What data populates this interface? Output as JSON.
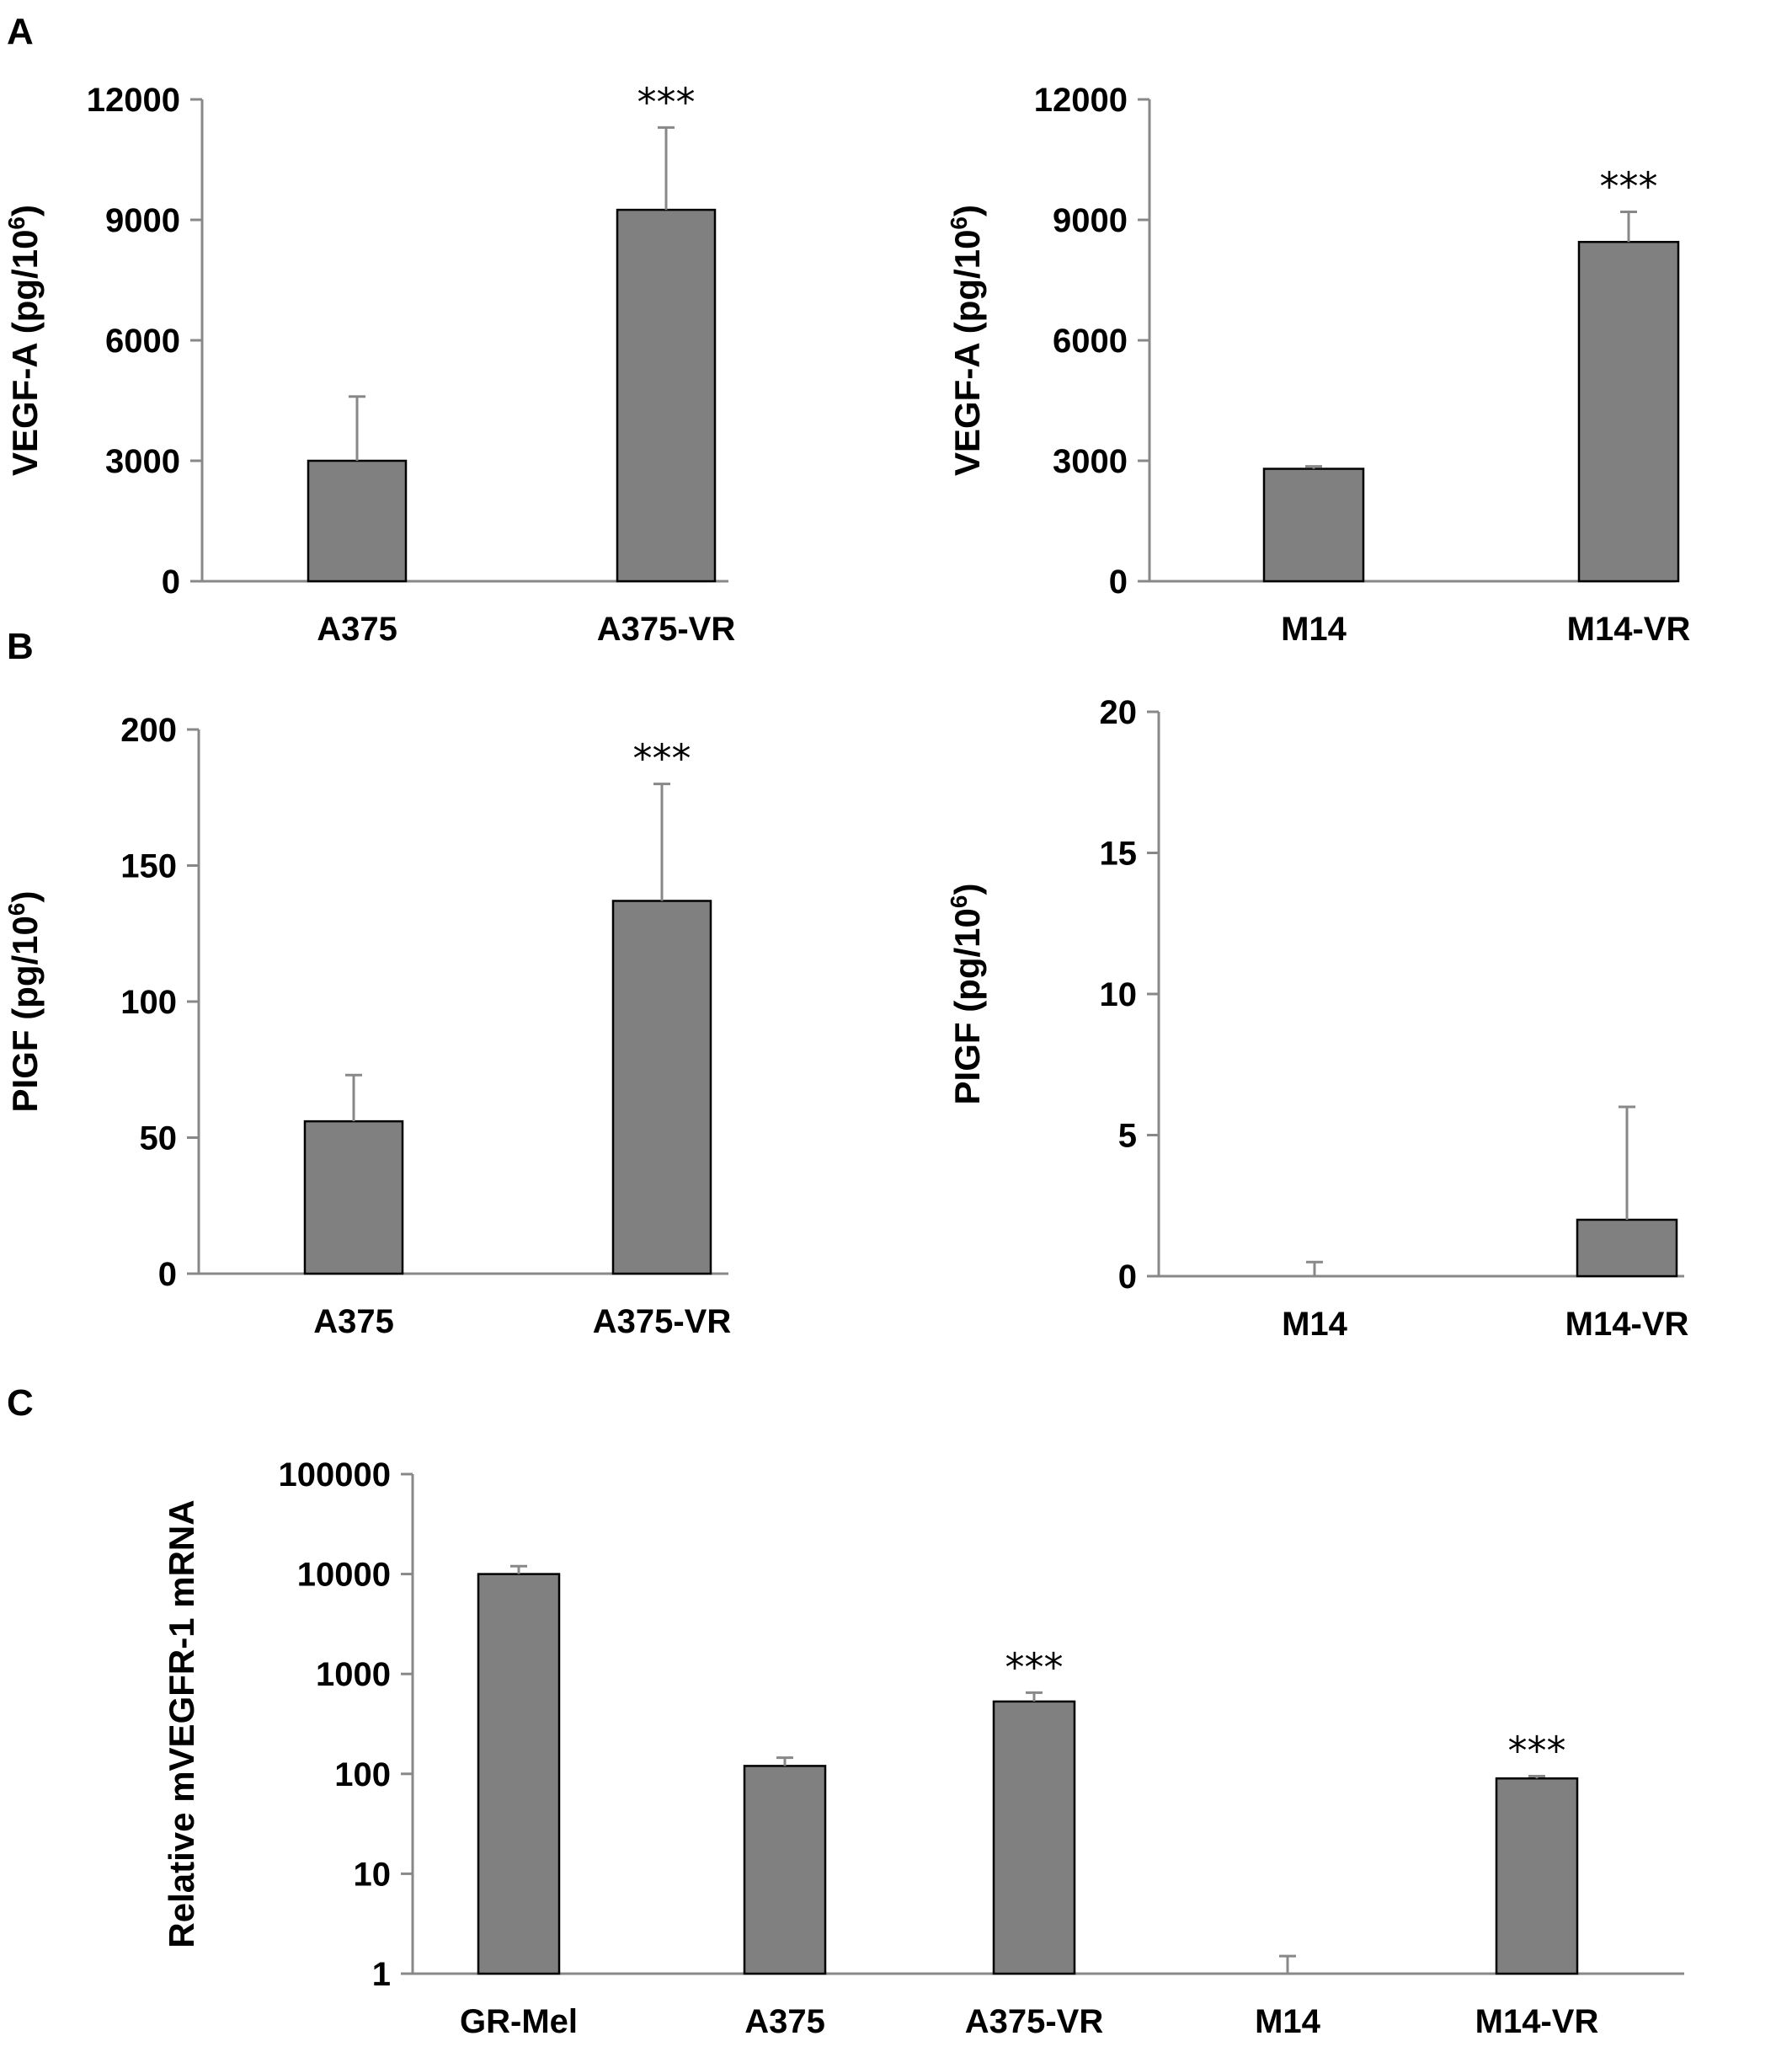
{
  "panels": [
    {
      "id": "A",
      "label": "A"
    },
    {
      "id": "B",
      "label": "B"
    },
    {
      "id": "C",
      "label": "C"
    }
  ],
  "chart_data": [
    {
      "panel": "A",
      "type": "bar",
      "ylabel": "VEGF-A (pg/10",
      "ylabel_sup": "6",
      "ylabel_tail": ")",
      "categories": [
        "A375",
        "A375-VR"
      ],
      "values": [
        3000,
        9250
      ],
      "errors": [
        1600,
        2050
      ],
      "significance": [
        "",
        "***"
      ],
      "ylim": [
        0,
        12000
      ],
      "yticks": [
        0,
        3000,
        6000,
        9000,
        12000
      ],
      "ytick_labels": [
        "0",
        "3000",
        "6000",
        "9000",
        "12000"
      ],
      "bar_color": "#808080"
    },
    {
      "panel": "A",
      "type": "bar",
      "ylabel": "VEGF-A (pg/10",
      "ylabel_sup": "6",
      "ylabel_tail": ")",
      "categories": [
        "M14",
        "M14-VR"
      ],
      "values": [
        2800,
        8450
      ],
      "errors": [
        60,
        750
      ],
      "significance": [
        "",
        "***"
      ],
      "ylim": [
        0,
        12000
      ],
      "yticks": [
        0,
        3000,
        6000,
        9000,
        12000
      ],
      "ytick_labels": [
        "0",
        "3000",
        "6000",
        "9000",
        "12000"
      ],
      "bar_color": "#808080"
    },
    {
      "panel": "B",
      "type": "bar",
      "ylabel": "PIGF (pg/10",
      "ylabel_sup": "6",
      "ylabel_tail": ")",
      "categories": [
        "A375",
        "A375-VR"
      ],
      "values": [
        56,
        137
      ],
      "errors": [
        17,
        43
      ],
      "significance": [
        "",
        "***"
      ],
      "ylim": [
        0,
        200
      ],
      "yticks": [
        0,
        50,
        100,
        150,
        200
      ],
      "ytick_labels": [
        "0",
        "50",
        "100",
        "150",
        "200"
      ],
      "bar_color": "#808080"
    },
    {
      "panel": "B",
      "type": "bar",
      "ylabel": "PIGF (pg/10",
      "ylabel_sup": "6",
      "ylabel_tail": ")",
      "categories": [
        "M14",
        "M14-VR"
      ],
      "values": [
        0,
        2
      ],
      "errors": [
        0.5,
        4
      ],
      "significance": [
        "",
        ""
      ],
      "ylim": [
        0,
        20
      ],
      "yticks": [
        0,
        5,
        10,
        15,
        20
      ],
      "ytick_labels": [
        "0",
        "5",
        "10",
        "15",
        "20"
      ],
      "bar_color": "#808080"
    },
    {
      "panel": "C",
      "type": "bar",
      "yscale": "log",
      "ylabel": "Relative mVEGFR-1 mRNA",
      "ylabel_sup": "",
      "ylabel_tail": "",
      "categories": [
        "GR-Mel",
        "A375",
        "A375-VR",
        "M14",
        "M14-VR"
      ],
      "values": [
        10000,
        120,
        530,
        1,
        90
      ],
      "error_tops": [
        12000,
        145,
        650,
        1.5,
        95
      ],
      "significance": [
        "",
        "",
        "***",
        "",
        "***"
      ],
      "ylim": [
        1,
        100000
      ],
      "yticks": [
        1,
        10,
        100,
        1000,
        10000,
        100000
      ],
      "ytick_labels": [
        "1",
        "10",
        "100",
        "1000",
        "10000",
        "100000"
      ],
      "bar_color": "#808080"
    }
  ]
}
